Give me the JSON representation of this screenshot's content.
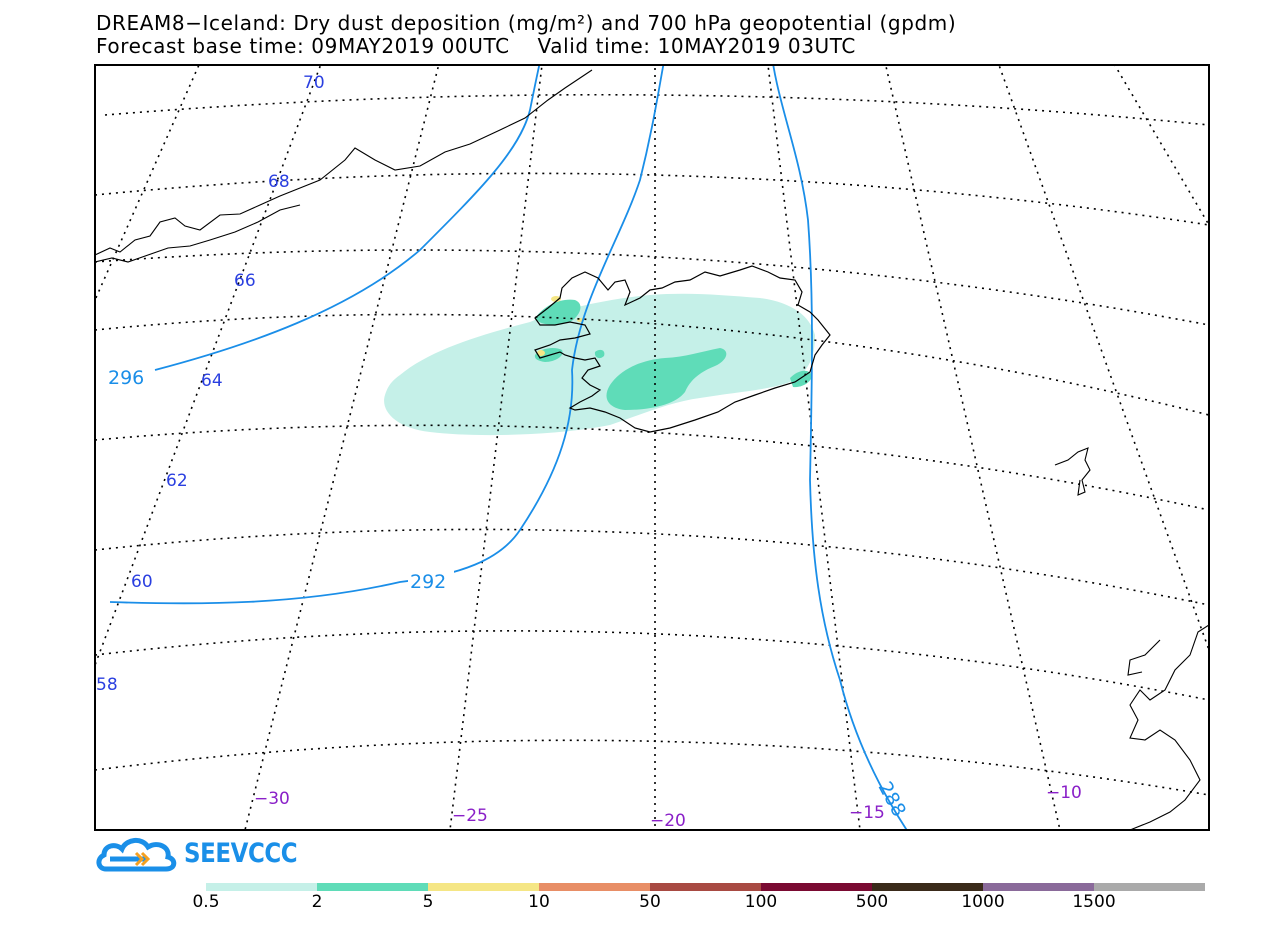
{
  "header": {
    "title_line1": "DREAM8−Iceland: Dry dust deposition (mg/m²) and 700 hPa geopotential (gpdm)",
    "title_line2": "Forecast base time: 09MAY2019 00UTC    Valid time: 10MAY2019 03UTC"
  },
  "map": {
    "lat_labels": [
      "70",
      "68",
      "66",
      "64",
      "62",
      "60",
      "58"
    ],
    "lon_labels": [
      "−30",
      "−25",
      "−20",
      "−15",
      "−10"
    ],
    "contour_labels": [
      "296",
      "292",
      "288"
    ],
    "colors": {
      "coastline": "#000000",
      "graticule": "#000000",
      "contour": "#1a8ee8",
      "lat_label": "#2a3fe0",
      "lon_label": "#8a20c8"
    }
  },
  "branding": {
    "logo_text": "SEEVCCC",
    "logo_icon": "cloud-arrow-icon",
    "logo_color": "#1a8fe8"
  },
  "legend": {
    "ticks": [
      "0.5",
      "2",
      "5",
      "10",
      "50",
      "100",
      "500",
      "1000",
      "1500"
    ],
    "colors": [
      "#c5f0e8",
      "#5fdcb8",
      "#f5e685",
      "#e88e66",
      "#a84a42",
      "#7a0a32",
      "#3a2a1a",
      "#8a6a9a",
      "#aaaaaa"
    ]
  }
}
